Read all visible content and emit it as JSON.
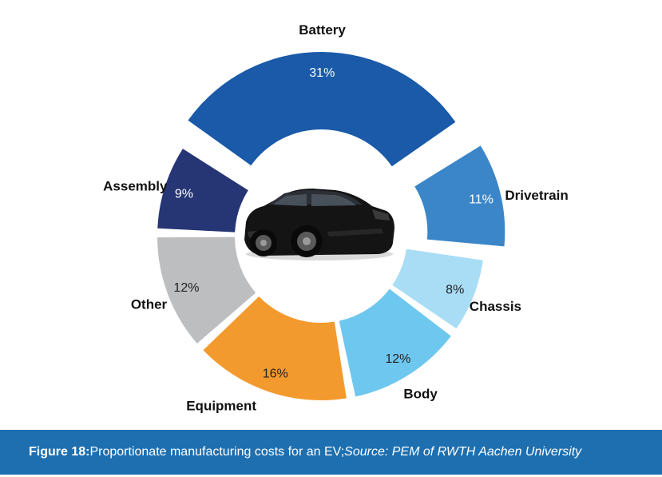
{
  "chart_data": {
    "type": "pie",
    "variant": "donut",
    "categories": [
      "Battery",
      "Drivetrain",
      "Chassis",
      "Body",
      "Equipment",
      "Other",
      "Assembly"
    ],
    "values": [
      31,
      11,
      8,
      12,
      16,
      12,
      9
    ],
    "value_labels": [
      "31%",
      "11%",
      "8%",
      "12%",
      "16%",
      "12%",
      "9%"
    ],
    "colors": [
      "#1a5aa8",
      "#3a86c8",
      "#a9ddf5",
      "#6ec7ef",
      "#f39a2e",
      "#bcbec0",
      "#263574"
    ],
    "percent_text_colors": [
      "#ffffff",
      "#ffffff",
      "#222222",
      "#222222",
      "#222222",
      "#222222",
      "#ffffff"
    ],
    "exploded": [
      "Battery",
      "Drivetrain"
    ],
    "center_image": "electric-car"
  },
  "caption": {
    "figure_label": "Figure 18:",
    "text": " Proportionate manufacturing costs for an EV; ",
    "source": "Source: PEM of RWTH Aachen University"
  }
}
